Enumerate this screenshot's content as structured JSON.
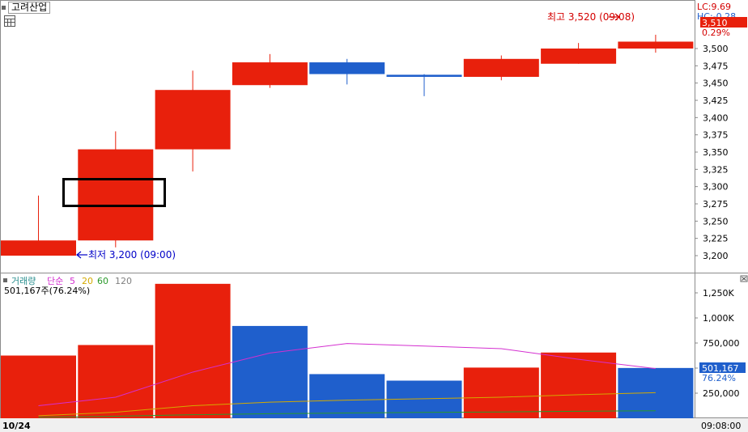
{
  "app": {
    "title": "고려산업"
  },
  "price_panel": {
    "lc_label": "LC:9.69",
    "hc_label": "HC:-0.28",
    "last_price_label": "3,510",
    "change_label": "0.29%",
    "high_annotation": "최고 3,520 (09:08)",
    "low_annotation": "최저 3,200 (09:00)",
    "y_ticks": [
      "3,200",
      "3,225",
      "3,250",
      "3,275",
      "3,300",
      "3,325",
      "3,350",
      "3,375",
      "3,400",
      "3,425",
      "3,450",
      "3,475",
      "3,500"
    ]
  },
  "volume_panel": {
    "indicator_label": "거래량",
    "ma_label": "단순",
    "ma_periods": [
      "5",
      "20",
      "60",
      "120"
    ],
    "volume_info": "501,167주(76.24%)",
    "y_ticks": [
      "250,000",
      "500,000",
      "750,000",
      "1,000K",
      "1,250K"
    ],
    "current_volume_label": "501,167",
    "current_pct_label": "76.24%"
  },
  "footer": {
    "date_label": "10/24",
    "time_label": "09:08:00"
  },
  "colors": {
    "up": "#e8200c",
    "down": "#1f5fcc",
    "ma5": "#d42fd0",
    "ma20": "#d4aa00",
    "ma60": "#2a9a2a",
    "ma120": "#808080",
    "label_down": "#0000c8",
    "label_up": "#d40000"
  },
  "chart_data": {
    "type": "candlestick",
    "candles": [
      {
        "open": 3200,
        "high": 3287,
        "low": 3200,
        "close": 3222
      },
      {
        "open": 3222,
        "high": 3380,
        "low": 3212,
        "close": 3354
      },
      {
        "open": 3354,
        "high": 3468,
        "low": 3322,
        "close": 3440
      },
      {
        "open": 3447,
        "high": 3492,
        "low": 3443,
        "close": 3480
      },
      {
        "open": 3480,
        "high": 3485,
        "low": 3448,
        "close": 3463
      },
      {
        "open": 3462,
        "high": 3463,
        "low": 3431,
        "close": 3459
      },
      {
        "open": 3459,
        "high": 3490,
        "low": 3454,
        "close": 3485
      },
      {
        "open": 3478,
        "high": 3508,
        "low": 3478,
        "close": 3500
      },
      {
        "open": 3500,
        "high": 3520,
        "low": 3494,
        "close": 3510
      }
    ],
    "volume": [
      {
        "value": 625000,
        "dir": "up"
      },
      {
        "value": 730000,
        "dir": "up"
      },
      {
        "value": 1340000,
        "dir": "up"
      },
      {
        "value": 920000,
        "dir": "down"
      },
      {
        "value": 440000,
        "dir": "down"
      },
      {
        "value": 375000,
        "dir": "down"
      },
      {
        "value": 505000,
        "dir": "up"
      },
      {
        "value": 655000,
        "dir": "up"
      },
      {
        "value": 501167,
        "dir": "down"
      }
    ],
    "ma5": [
      125000,
      210000,
      460000,
      650000,
      745000,
      720000,
      694000,
      588000,
      495000
    ],
    "ma20": [
      25000,
      60000,
      125000,
      160000,
      180000,
      195000,
      210000,
      235000,
      255000
    ],
    "ma60": [
      10000,
      20000,
      35000,
      45000,
      52000,
      58000,
      63000,
      70000,
      75000
    ],
    "y_range_price": [
      3190,
      3525
    ],
    "y_range_volume": [
      0,
      1380000
    ]
  }
}
